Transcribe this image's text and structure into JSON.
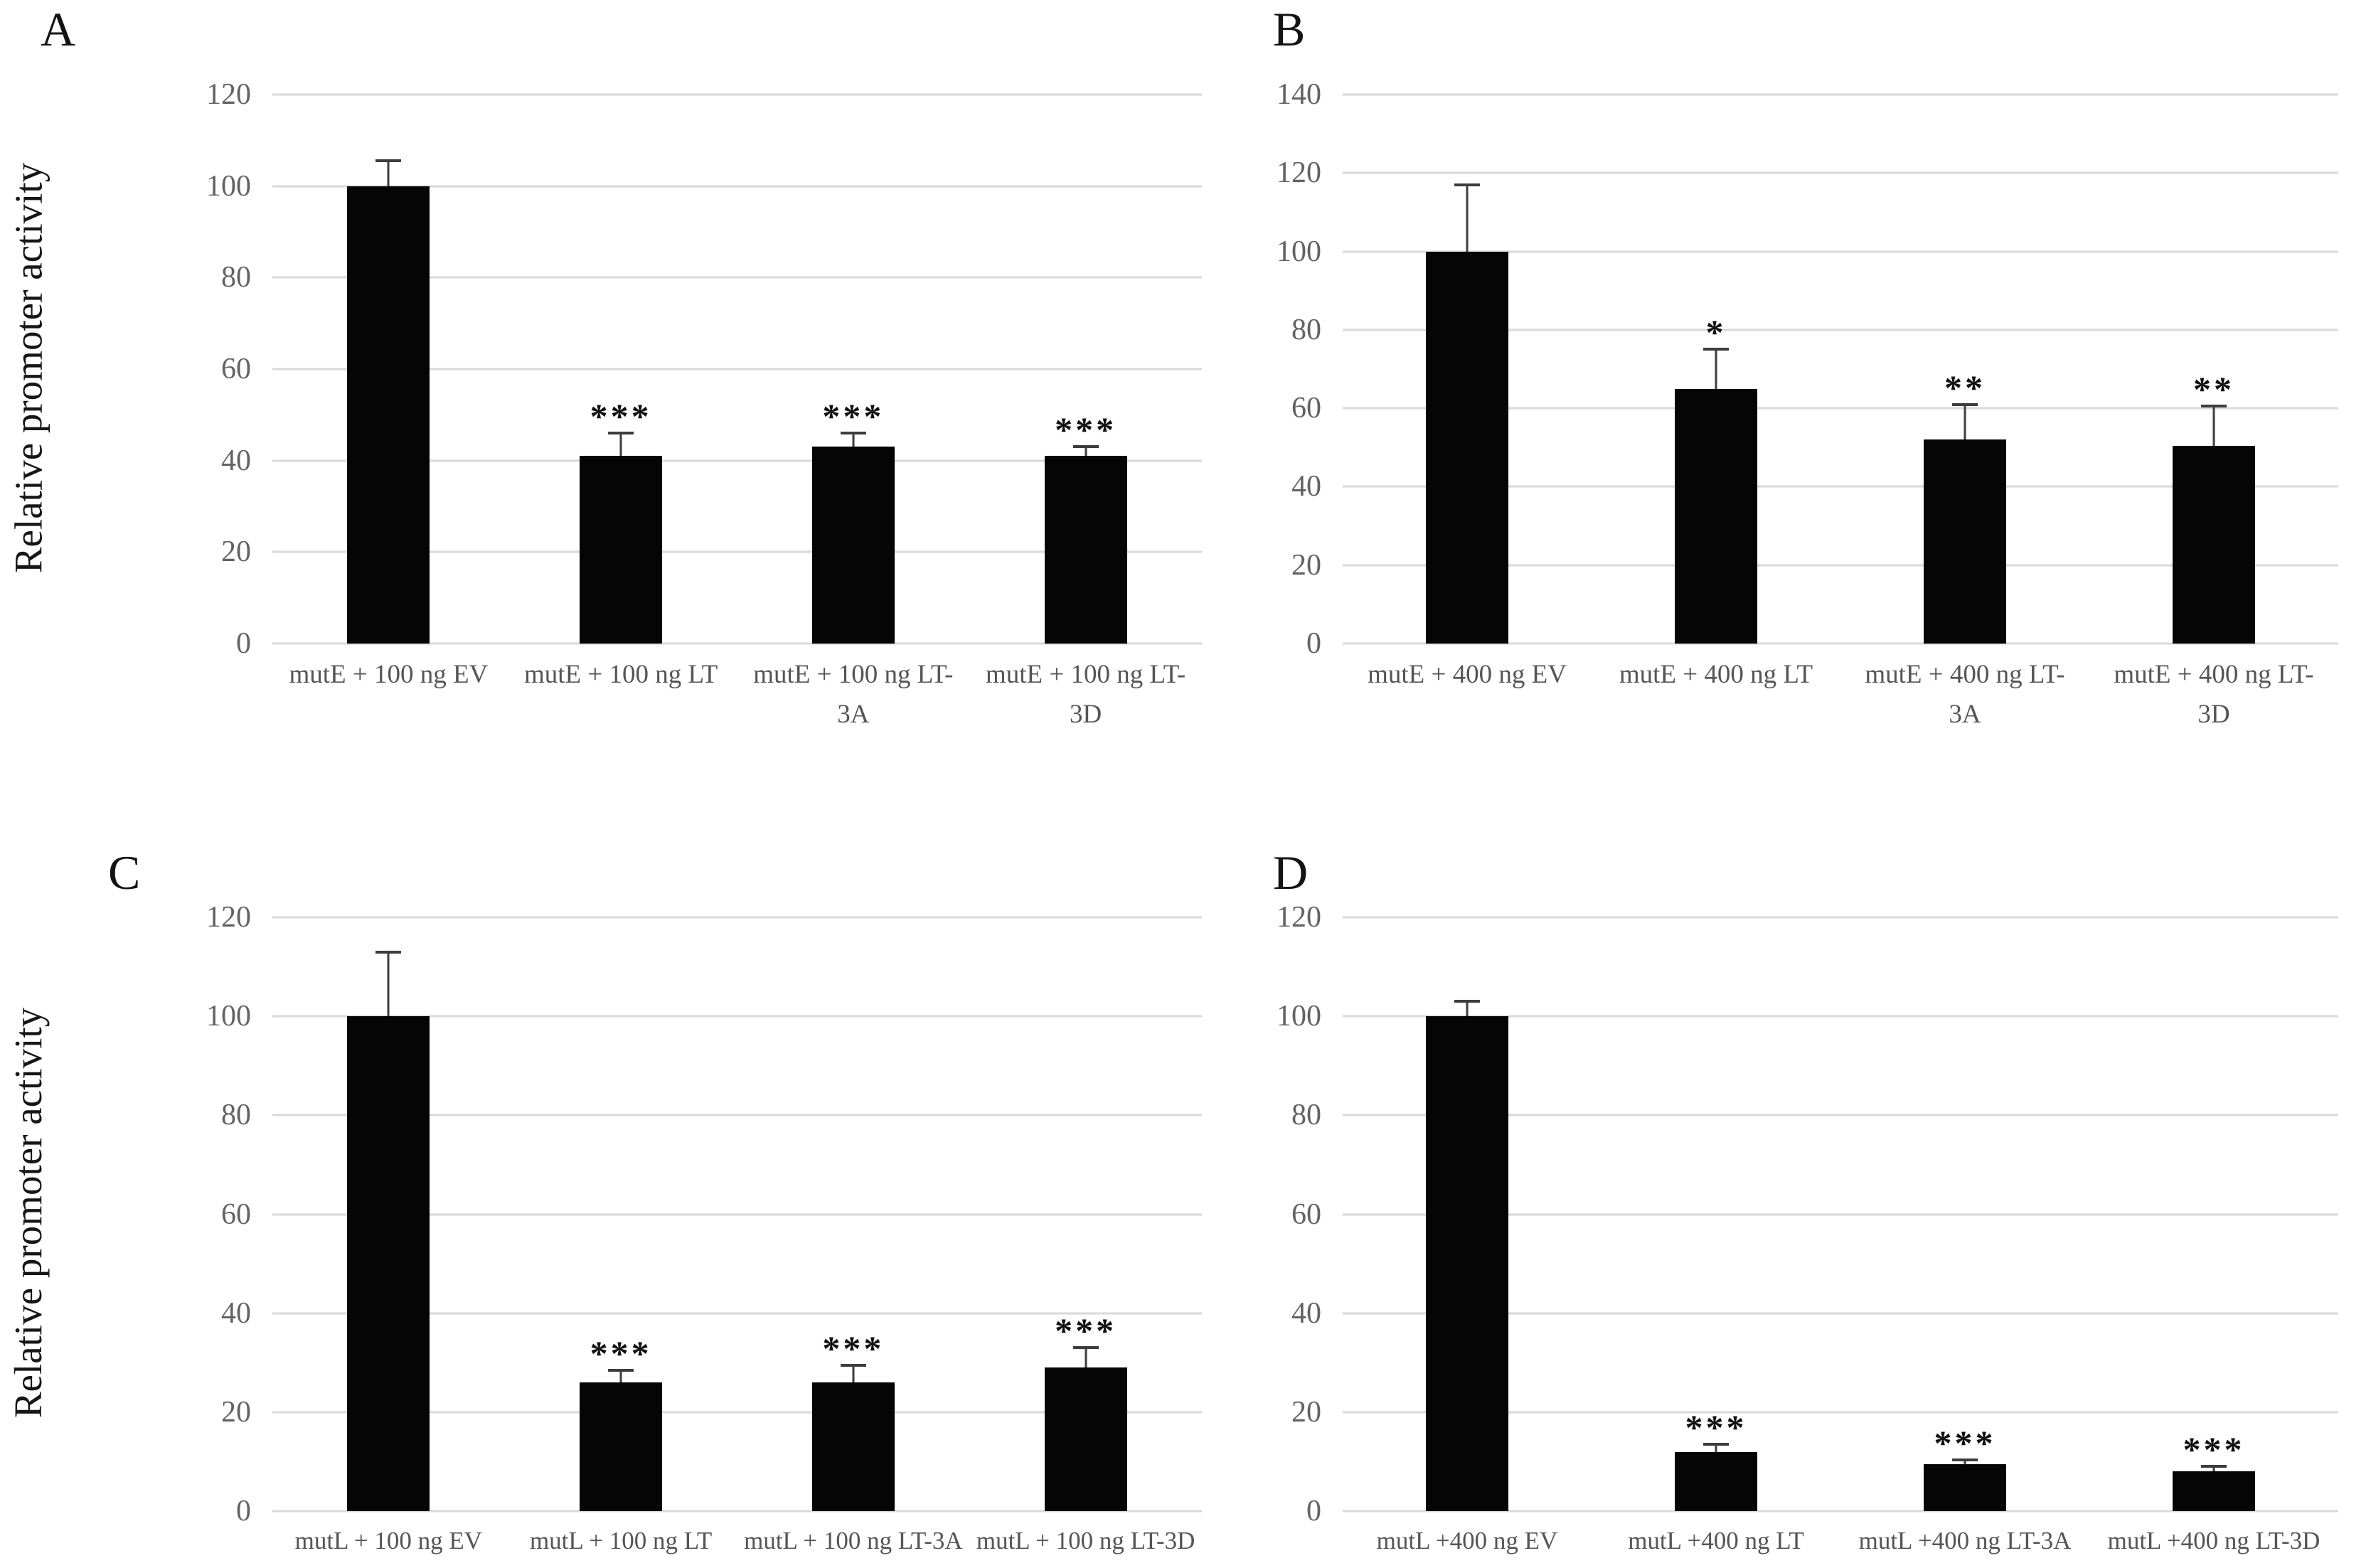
{
  "figure": {
    "background": "#ffffff",
    "bar_color": "#050505",
    "grid_color": "#d9d9d9",
    "tick_label_color": "#636363",
    "text_color": "#161616",
    "error_bar_color": "#3d3d3d"
  },
  "chart_data": [
    {
      "panel": "A",
      "type": "bar",
      "title": "",
      "xlabel": "",
      "ylabel": "Relative promoter activity",
      "ylim": [
        0,
        120
      ],
      "ytick_step": 20,
      "grid": true,
      "legend": "none",
      "categories": [
        "mutE + 100 ng EV",
        "mutE + 100 ng LT",
        "mutE + 100 ng LT-\n3A",
        "mutE + 100 ng LT-\n3D"
      ],
      "values": [
        100,
        41,
        43,
        41
      ],
      "errors": [
        5.5,
        5,
        3,
        2
      ],
      "significance": [
        "",
        "***",
        "***",
        "***"
      ]
    },
    {
      "panel": "B",
      "type": "bar",
      "title": "",
      "xlabel": "",
      "ylabel": "",
      "ylim": [
        0,
        140
      ],
      "ytick_step": 20,
      "grid": true,
      "legend": "none",
      "categories": [
        "mutE + 400 ng EV",
        "mutE + 400 ng LT",
        "mutE + 400 ng LT-\n3A",
        "mutE + 400 ng LT-\n3D"
      ],
      "values": [
        100,
        65,
        52,
        50.5
      ],
      "errors": [
        17,
        10,
        9,
        10
      ],
      "significance": [
        "",
        "*",
        "**",
        "**"
      ]
    },
    {
      "panel": "C",
      "type": "bar",
      "title": "",
      "xlabel": "",
      "ylabel": "Relative promoter activity",
      "ylim": [
        0,
        120
      ],
      "ytick_step": 20,
      "grid": true,
      "legend": "none",
      "categories": [
        "mutL + 100 ng EV",
        "mutL + 100 ng LT",
        "mutL + 100 ng LT-3A",
        "mutL + 100 ng LT-3D"
      ],
      "values": [
        100,
        26,
        26,
        29
      ],
      "errors": [
        13,
        2.5,
        3.5,
        4
      ],
      "significance": [
        "",
        "***",
        "***",
        "***"
      ]
    },
    {
      "panel": "D",
      "type": "bar",
      "title": "",
      "xlabel": "",
      "ylabel": "",
      "ylim": [
        0,
        120
      ],
      "ytick_step": 20,
      "grid": true,
      "legend": "none",
      "categories": [
        "mutL +400 ng EV",
        "mutL +400 ng LT",
        "mutL +400 ng LT-3A",
        "mutL +400 ng LT-3D"
      ],
      "values": [
        100,
        12,
        9.5,
        8
      ],
      "errors": [
        3,
        1.5,
        0.8,
        1
      ],
      "significance": [
        "",
        "***",
        "***",
        "***"
      ]
    }
  ]
}
